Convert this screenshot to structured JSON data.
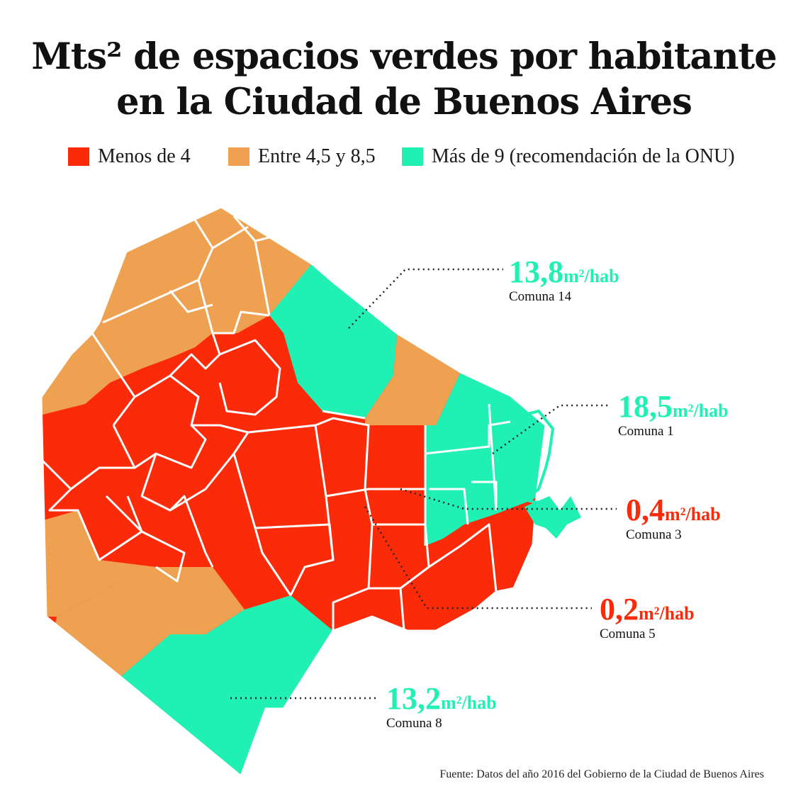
{
  "title": {
    "line1": "Mts² de espacios verdes por habitante",
    "line2": "en la Ciudad de Buenos Aires"
  },
  "colors": {
    "low": "#fb2b0a",
    "mid": "#eea151",
    "high": "#21f0b5",
    "border": "#ffffff"
  },
  "legend": [
    {
      "label": "Menos de 4",
      "color": "#fb2b0a"
    },
    {
      "label": "Entre 4,5 y 8,5",
      "color": "#eea151"
    },
    {
      "label": "Más de 9 (recomendación de la ONU)",
      "color": "#21f0b5"
    }
  ],
  "callouts": [
    {
      "value": "13,8",
      "unit": "m²/hab",
      "name": "Comuna 14",
      "color": "#21f0b5"
    },
    {
      "value": "18,5",
      "unit": "m²/hab",
      "name": "Comuna 1",
      "color": "#21f0b5"
    },
    {
      "value": "0,4",
      "unit": "m²/hab",
      "name": "Comuna 3",
      "color": "#fb2b0a"
    },
    {
      "value": "0,2",
      "unit": "m²/hab",
      "name": "Comuna 5",
      "color": "#fb2b0a"
    },
    {
      "value": "13,2",
      "unit": "m²/hab",
      "name": "Comuna 8",
      "color": "#21f0b5"
    }
  ],
  "source": "Fuente: Datos del año 2016 del Gobierno de la Ciudad de Buenos Aires"
}
